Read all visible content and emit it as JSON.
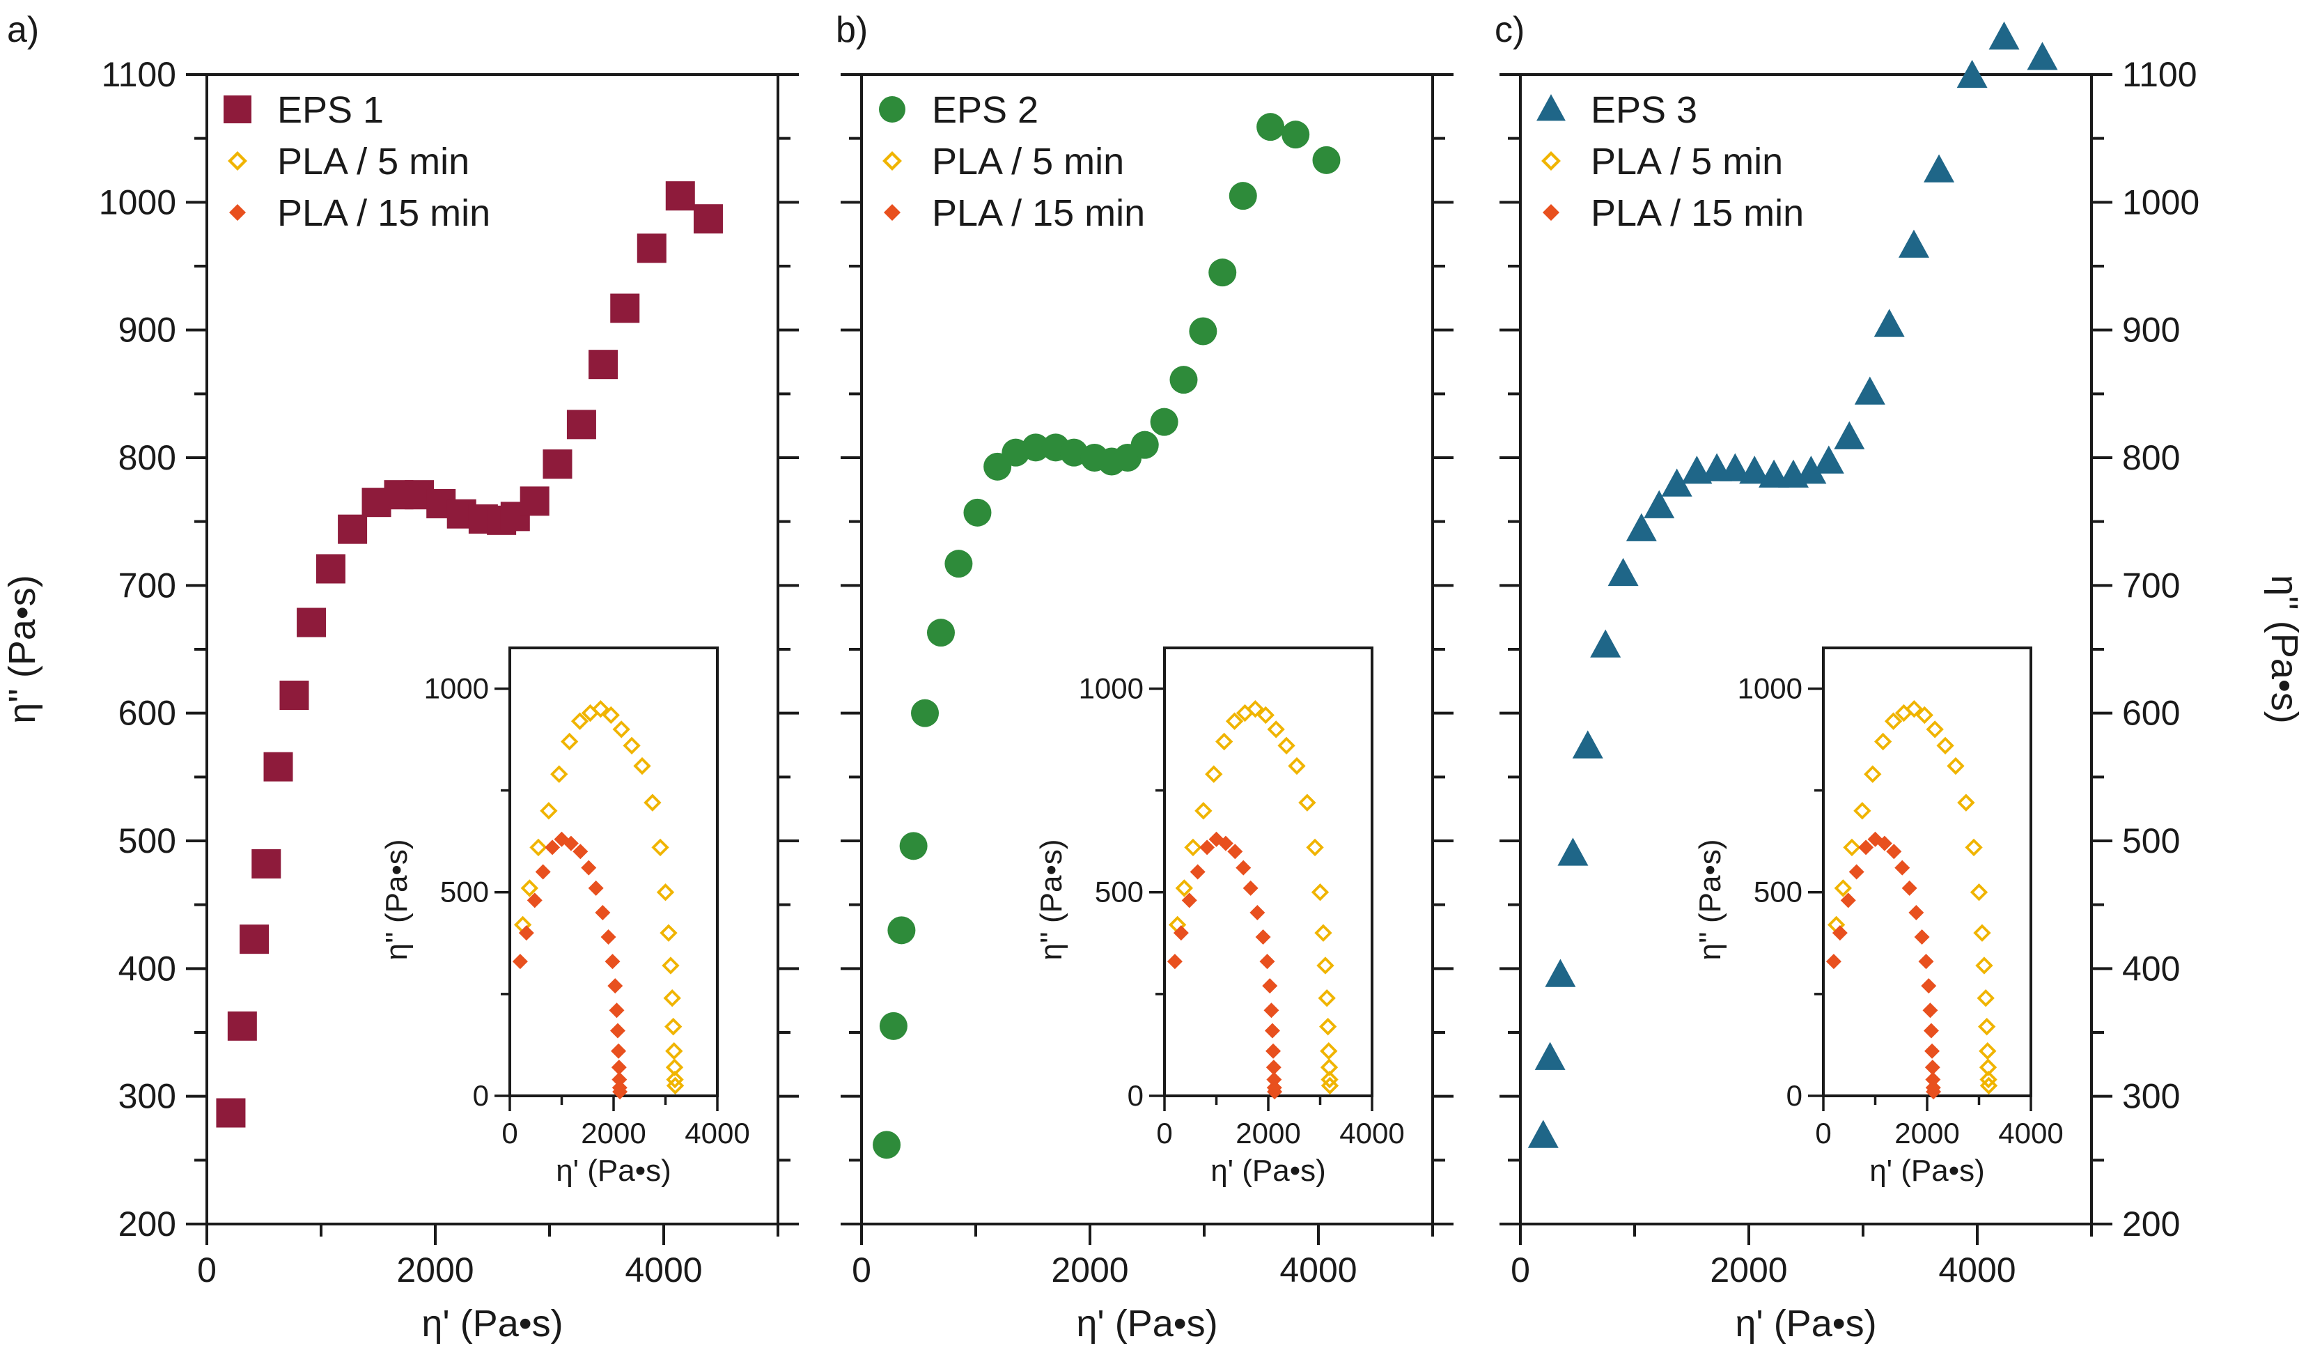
{
  "chart_data": [
    {
      "panel_label": "a)",
      "type": "scatter",
      "xlabel": "η' (Pa•s)",
      "ylabel": "η'' (Pa•s)",
      "xlim": [
        0,
        5000
      ],
      "ylim": [
        200,
        1100
      ],
      "xticks": [
        "0",
        "2000",
        "4000"
      ],
      "yticks": [
        "200",
        "300",
        "400",
        "500",
        "600",
        "700",
        "800",
        "900",
        "1000",
        "1100"
      ],
      "show_left_tick_labels": true,
      "show_right_tick_labels": false,
      "show_ylabel_left": true,
      "show_ylabel_right": false,
      "legend_position": "top-left",
      "series": [
        {
          "name": "EPS 1",
          "marker": "square",
          "color": "#8e1b3b",
          "x": [
            210,
            310,
            415,
            520,
            625,
            765,
            915,
            1085,
            1275,
            1485,
            1680,
            1860,
            2050,
            2230,
            2420,
            2580,
            2700,
            2870,
            3070,
            3280,
            3470,
            3660,
            3895,
            4145,
            4390
          ],
          "y": [
            287,
            355,
            423,
            482,
            558,
            614,
            671,
            713,
            744,
            765,
            771,
            771,
            764,
            756,
            752,
            751,
            754,
            766,
            795,
            826,
            873,
            917,
            964,
            1005,
            987
          ]
        }
      ],
      "inset": {
        "xlabel": "η' (Pa•s)",
        "ylabel": "η'' (Pa•s)",
        "xlim": [
          0,
          4000
        ],
        "ylim": [
          0,
          1100
        ],
        "xticks": [
          "0",
          "2000",
          "4000"
        ],
        "yticks": [
          "0",
          "500",
          "1000"
        ],
        "series": [
          {
            "name": "PLA / 5 min",
            "marker": "diamond-open",
            "color": "#f0b400",
            "x": [
              250,
              380,
              550,
              750,
              950,
              1150,
              1350,
              1550,
              1750,
              1950,
              2150,
              2350,
              2550,
              2750,
              2900,
              3000,
              3060,
              3100,
              3130,
              3150,
              3165,
              3175,
              3182,
              3188
            ],
            "y": [
              420,
              510,
              610,
              700,
              790,
              870,
              920,
              940,
              950,
              935,
              900,
              860,
              810,
              720,
              610,
              500,
              400,
              320,
              240,
              170,
              110,
              70,
              40,
              25
            ]
          },
          {
            "name": "PLA / 15 min",
            "marker": "diamond-filled",
            "color": "#e8501e",
            "x": [
              200,
              320,
              480,
              640,
              820,
              1000,
              1180,
              1360,
              1520,
              1660,
              1790,
              1900,
              1980,
              2030,
              2060,
              2080,
              2095,
              2105,
              2112,
              2118,
              2122
            ],
            "y": [
              330,
              400,
              480,
              550,
              610,
              630,
              620,
              600,
              560,
              510,
              450,
              390,
              330,
              270,
              210,
              160,
              110,
              70,
              40,
              20,
              10
            ]
          }
        ]
      }
    },
    {
      "panel_label": "b)",
      "type": "scatter",
      "xlabel": "η' (Pa•s)",
      "ylabel": "",
      "xlim": [
        0,
        5000
      ],
      "ylim": [
        200,
        1100
      ],
      "xticks": [
        "0",
        "2000",
        "4000"
      ],
      "yticks": [],
      "show_left_tick_labels": false,
      "show_right_tick_labels": false,
      "show_ylabel_left": false,
      "show_ylabel_right": false,
      "legend_position": "top-left",
      "series": [
        {
          "name": "EPS 2",
          "marker": "circle",
          "color": "#2e8b3a",
          "x": [
            220,
            280,
            350,
            455,
            555,
            695,
            850,
            1015,
            1190,
            1350,
            1525,
            1700,
            1860,
            2040,
            2190,
            2330,
            2480,
            2650,
            2820,
            2990,
            3160,
            3340,
            3580,
            3800,
            4070
          ],
          "y": [
            262,
            355,
            430,
            496,
            600,
            663,
            717,
            757,
            793,
            804,
            808,
            808,
            804,
            800,
            797,
            800,
            810,
            828,
            861,
            899,
            945,
            1005,
            1059,
            1053,
            1033
          ]
        }
      ],
      "inset": {
        "xlabel": "η' (Pa•s)",
        "ylabel": "η'' (Pa•s)",
        "xlim": [
          0,
          4000
        ],
        "ylim": [
          0,
          1100
        ],
        "xticks": [
          "0",
          "2000",
          "4000"
        ],
        "yticks": [
          "0",
          "500",
          "1000"
        ],
        "series": [
          {
            "name": "PLA / 5 min",
            "marker": "diamond-open",
            "color": "#f0b400",
            "x": [
              250,
              380,
              550,
              750,
              950,
              1150,
              1350,
              1550,
              1750,
              1950,
              2150,
              2350,
              2550,
              2750,
              2900,
              3000,
              3060,
              3100,
              3130,
              3150,
              3165,
              3175,
              3182,
              3188
            ],
            "y": [
              420,
              510,
              610,
              700,
              790,
              870,
              920,
              940,
              950,
              935,
              900,
              860,
              810,
              720,
              610,
              500,
              400,
              320,
              240,
              170,
              110,
              70,
              40,
              25
            ]
          },
          {
            "name": "PLA / 15 min",
            "marker": "diamond-filled",
            "color": "#e8501e",
            "x": [
              200,
              320,
              480,
              640,
              820,
              1000,
              1180,
              1360,
              1520,
              1660,
              1790,
              1900,
              1980,
              2030,
              2060,
              2080,
              2095,
              2105,
              2112,
              2118,
              2122
            ],
            "y": [
              330,
              400,
              480,
              550,
              610,
              630,
              620,
              600,
              560,
              510,
              450,
              390,
              330,
              270,
              210,
              160,
              110,
              70,
              40,
              20,
              10
            ]
          }
        ]
      }
    },
    {
      "panel_label": "c)",
      "type": "scatter",
      "xlabel": "η' (Pa•s)",
      "ylabel": "η'' (Pa•s)",
      "xlim": [
        0,
        5000
      ],
      "ylim": [
        200,
        1100
      ],
      "xticks": [
        "0",
        "2000",
        "4000"
      ],
      "yticks": [
        "200",
        "300",
        "400",
        "500",
        "600",
        "700",
        "800",
        "900",
        "1000",
        "1100"
      ],
      "show_left_tick_labels": false,
      "show_right_tick_labels": true,
      "show_ylabel_left": false,
      "show_ylabel_right": true,
      "legend_position": "top-left",
      "series": [
        {
          "name": "EPS 3",
          "marker": "triangle",
          "color": "#1f6688",
          "x": [
            200,
            260,
            350,
            460,
            590,
            745,
            900,
            1060,
            1215,
            1370,
            1545,
            1720,
            1880,
            2050,
            2220,
            2390,
            2545,
            2700,
            2880,
            3060,
            3230,
            3445,
            3665,
            3955,
            4235,
            4570
          ],
          "y": [
            269,
            330,
            395,
            490,
            574,
            653,
            709,
            744,
            762,
            779,
            789,
            791,
            791,
            789,
            786,
            786,
            789,
            797,
            816,
            851,
            904,
            966,
            1025,
            1099,
            1129,
            1113
          ]
        }
      ],
      "inset": {
        "xlabel": "η' (Pa•s)",
        "ylabel": "η'' (Pa•s)",
        "xlim": [
          0,
          4000
        ],
        "ylim": [
          0,
          1100
        ],
        "xticks": [
          "0",
          "2000",
          "4000"
        ],
        "yticks": [
          "0",
          "500",
          "1000"
        ],
        "series": [
          {
            "name": "PLA / 5 min",
            "marker": "diamond-open",
            "color": "#f0b400",
            "x": [
              250,
              380,
              550,
              750,
              950,
              1150,
              1350,
              1550,
              1750,
              1950,
              2150,
              2350,
              2550,
              2750,
              2900,
              3000,
              3060,
              3100,
              3130,
              3150,
              3165,
              3175,
              3182,
              3188
            ],
            "y": [
              420,
              510,
              610,
              700,
              790,
              870,
              920,
              940,
              950,
              935,
              900,
              860,
              810,
              720,
              610,
              500,
              400,
              320,
              240,
              170,
              110,
              70,
              40,
              25
            ]
          },
          {
            "name": "PLA / 15 min",
            "marker": "diamond-filled",
            "color": "#e8501e",
            "x": [
              200,
              320,
              480,
              640,
              820,
              1000,
              1180,
              1360,
              1520,
              1660,
              1790,
              1900,
              1980,
              2030,
              2060,
              2080,
              2095,
              2105,
              2112,
              2118,
              2122
            ],
            "y": [
              330,
              400,
              480,
              550,
              610,
              630,
              620,
              600,
              560,
              510,
              450,
              390,
              330,
              270,
              210,
              160,
              110,
              70,
              40,
              20,
              10
            ]
          }
        ]
      }
    }
  ]
}
